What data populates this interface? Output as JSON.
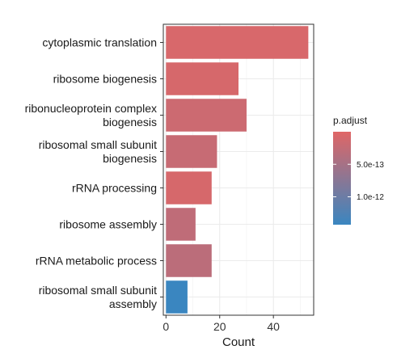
{
  "chart_data": {
    "type": "bar",
    "orientation": "horizontal",
    "categories": [
      "cytoplasmic translation",
      "ribosome biogenesis",
      "ribonucleoprotein complex\nbiogenesis",
      "ribosomal small subunit\nbiogenesis",
      "rRNA processing",
      "ribosome assembly",
      "rRNA metabolic process",
      "ribosomal small subunit\nassembly"
    ],
    "values": [
      53,
      27,
      30,
      19,
      17,
      11,
      17,
      8
    ],
    "color_values": [
      0.05,
      0.06,
      0.12,
      0.15,
      0.06,
      0.2,
      0.22,
      1.0
    ],
    "xlabel": "Count",
    "ylabel": "",
    "xlim": [
      -1,
      55
    ],
    "xticks": [
      0,
      20,
      40
    ],
    "grid": true,
    "legend": {
      "title": "p.adjust",
      "placement": "right",
      "ticks": [
        "5.0e-13",
        "1.0e-12"
      ],
      "tick_positions": [
        0.35,
        0.7
      ],
      "color_low": "#e06666",
      "color_high": "#3a86c0"
    }
  }
}
